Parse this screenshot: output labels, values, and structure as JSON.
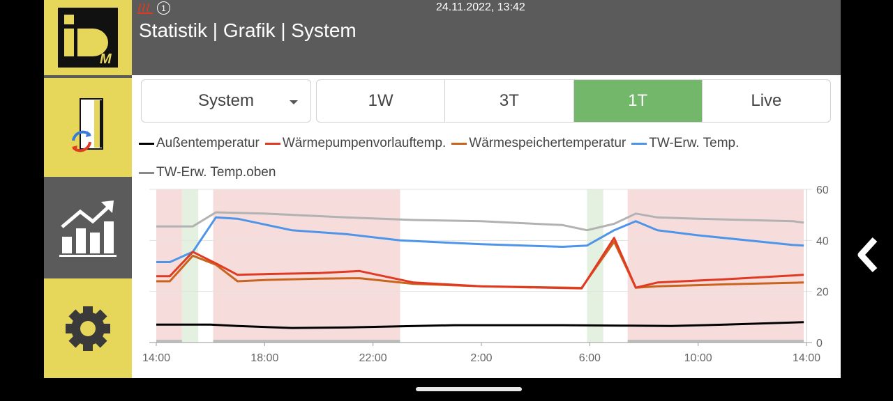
{
  "header": {
    "datetime": "24.11.2022, 13:42",
    "title": "Statistik | Grafik | System",
    "notification_count": "1"
  },
  "colors": {
    "accent_yellow": "#e6d75a",
    "header_grey": "#5b5b5b",
    "active_tab": "#72b76a",
    "heating_band": "#f7dcdc",
    "green_band": "#e4f0e0"
  },
  "sidebar": {
    "items": [
      {
        "name": "idm-logo"
      },
      {
        "name": "heat-pump-system"
      },
      {
        "name": "statistics"
      },
      {
        "name": "settings"
      }
    ]
  },
  "controls": {
    "select_value": "System",
    "tabs": [
      "1W",
      "3T",
      "1T",
      "Live"
    ],
    "active_tab": "1T"
  },
  "chart_data": {
    "type": "line",
    "x_ticks": [
      "14:00",
      "18:00",
      "22:00",
      "2:00",
      "6:00",
      "10:00",
      "14:00"
    ],
    "y_ticks": [
      "0",
      "20",
      "40",
      "60"
    ],
    "ylim": [
      0,
      60
    ],
    "x_range_hours": [
      0,
      24
    ],
    "grid": true,
    "legend_position": "top",
    "series": [
      {
        "name": "Außentemperatur",
        "color": "#000000",
        "x": [
          0,
          2,
          3,
          5,
          7,
          11,
          15,
          17.5,
          19,
          21,
          23.9
        ],
        "y": [
          7,
          7,
          6.5,
          5.7,
          5.9,
          6.8,
          6.8,
          6.6,
          6.5,
          7,
          8
        ]
      },
      {
        "name": "Wärmepumpenvorlauftemp.",
        "color": "#e03a22",
        "x": [
          0,
          0.5,
          1.35,
          2.2,
          3,
          4,
          6,
          7.5,
          9.5,
          12,
          15.7,
          16.9,
          17.7,
          18.5,
          21,
          23.9
        ],
        "y": [
          26,
          26,
          35.5,
          31,
          26.5,
          26.8,
          27.2,
          28,
          23.5,
          22,
          21.2,
          41,
          21.5,
          23.5,
          24.8,
          26.5
        ]
      },
      {
        "name": "Wärmespeichertemperatur",
        "color": "#c8641e",
        "x": [
          0,
          0.5,
          1.35,
          2.2,
          3,
          4,
          6,
          7.5,
          9.5,
          12,
          15.7,
          16.9,
          17.7,
          18.5,
          21,
          23.9
        ],
        "y": [
          24,
          24,
          34,
          30.5,
          24,
          24.5,
          25,
          25.2,
          23,
          22,
          21.4,
          39.5,
          21.5,
          22,
          22.8,
          23.5
        ]
      },
      {
        "name": "TW-Erw. Temp.",
        "color": "#4e94e8",
        "x": [
          0,
          0.5,
          1.35,
          2.2,
          3,
          5,
          7,
          9,
          12,
          15,
          15.9,
          16.9,
          17.7,
          18.5,
          20,
          23.5,
          23.9
        ],
        "y": [
          31.5,
          31.5,
          35.5,
          49,
          48.5,
          44,
          42.5,
          40,
          38.5,
          37.5,
          38,
          44,
          47.5,
          44,
          42,
          38.2,
          38
        ]
      },
      {
        "name": "TW-Erw. Temp.oben",
        "color": "#b2b2b2",
        "x": [
          0,
          1.35,
          2.2,
          4,
          7,
          9.5,
          12,
          15,
          15.9,
          16.9,
          17.7,
          18.5,
          20,
          23.5,
          23.9
        ],
        "y": [
          45.5,
          45.5,
          51,
          50.5,
          49,
          48,
          47.5,
          46,
          44,
          46.5,
          50.5,
          49,
          48.5,
          47.5,
          47
        ]
      }
    ],
    "bands": {
      "heating": [
        [
          0,
          0.95
        ],
        [
          2.1,
          9.0
        ],
        [
          17.4,
          23.9
        ]
      ],
      "green": [
        [
          0.95,
          1.55
        ],
        [
          15.9,
          16.5
        ]
      ]
    }
  }
}
